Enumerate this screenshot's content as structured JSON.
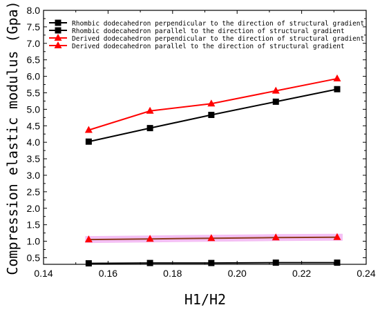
{
  "chart_data": {
    "type": "line",
    "xlabel": "H1/H2",
    "ylabel": "Compression elastic modulus (Gpa)",
    "xlim": [
      0.14,
      0.24
    ],
    "ylim": [
      0.3,
      8.0
    ],
    "x_ticks": [
      0.14,
      0.16,
      0.18,
      0.2,
      0.22,
      0.24
    ],
    "x_tick_labels": [
      "0.14",
      "0.16",
      "0.18",
      "0.20",
      "0.22",
      "0.24"
    ],
    "y_ticks": [
      0.5,
      1.0,
      1.5,
      2.0,
      2.5,
      3.0,
      3.5,
      4.0,
      4.5,
      5.0,
      5.5,
      6.0,
      6.5,
      7.0,
      7.5,
      8.0
    ],
    "y_tick_labels": [
      "0.5",
      "1.0",
      "1.5",
      "2.0",
      "2.5",
      "3.0",
      "3.5",
      "4.0",
      "4.5",
      "5.0",
      "5.5",
      "6.0",
      "6.5",
      "7.0",
      "7.5",
      "8.0"
    ],
    "grid": false,
    "legend_position": "top",
    "x": [
      0.154,
      0.173,
      0.192,
      0.212,
      0.231
    ],
    "series": [
      {
        "name": "Rhombic dodecahedron perpendicular to the direction of structural gradient",
        "marker": "square",
        "color": "#000000",
        "values": [
          4.02,
          4.43,
          4.83,
          5.23,
          5.61
        ]
      },
      {
        "name": "Rhombic dodecahedron parallel to the direction of structural gradient",
        "marker": "square",
        "color": "#000000",
        "values": [
          0.33,
          0.34,
          0.34,
          0.35,
          0.35
        ]
      },
      {
        "name": "Derived dodecahedron perpendicular to the direction of structural gradient",
        "marker": "triangle",
        "color": "#ff0000",
        "values": [
          4.37,
          4.95,
          5.17,
          5.56,
          5.93
        ]
      },
      {
        "name": "Derived dodecahedron parallel to the direction of structural gradient",
        "marker": "triangle",
        "color": "#ff0000",
        "line_color": "#8b3a1a",
        "band_color": "#f3b8f3",
        "values": [
          1.05,
          1.07,
          1.09,
          1.11,
          1.12
        ]
      }
    ]
  }
}
